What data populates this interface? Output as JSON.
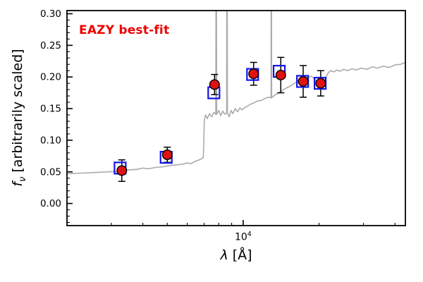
{
  "chart_data": {
    "type": "line",
    "annotation": "EAZY best-fit",
    "xlabel_parts": {
      "lambda": "λ",
      "rest": " [Å]"
    },
    "ylabel_parts": {
      "f": "f",
      "sub": "ν",
      "rest": " [arbitrarily scaled]"
    },
    "xscale": "log",
    "xlim": [
      2000,
      44000
    ],
    "ylim": [
      -0.035,
      0.305
    ],
    "grid": false,
    "legend": null,
    "xtick_major": [
      10000
    ],
    "xtick_major_label": {
      "base": "10",
      "exp": "4"
    },
    "xtick_minor": [
      3000,
      4000,
      5000,
      6000,
      7000,
      8000,
      9000,
      20000,
      30000,
      40000
    ],
    "ytick_values": [
      0,
      0.05,
      0.1,
      0.15,
      0.2,
      0.25,
      0.3
    ],
    "ytick_labels": [
      "0.00",
      "0.05",
      "0.10",
      "0.15",
      "0.20",
      "0.25",
      "0.30"
    ],
    "ytick_minor_step": 0.01,
    "colors": {
      "spectrum": "#ababab",
      "model_marker": "#1414e6",
      "observed_fill": "#e01212",
      "observed_edge": "#000000",
      "errorbar": "#000000",
      "annotation": "#ee0000",
      "axes": "#000000"
    },
    "series": [
      {
        "name": "best-fit template spectrum",
        "type": "line",
        "x": [
          2000,
          2300,
          2600,
          2900,
          3200,
          3500,
          3800,
          4000,
          4200,
          4500,
          4800,
          5100,
          5400,
          5700,
          6000,
          6200,
          6400,
          6600,
          6800,
          6950,
          7010,
          7100,
          7200,
          7350,
          7500,
          7650,
          7790,
          7820,
          7850,
          8000,
          8150,
          8300,
          8450,
          8600,
          8625,
          8660,
          8800,
          8950,
          9100,
          9300,
          9500,
          9700,
          9900,
          10100,
          10400,
          10700,
          11000,
          11400,
          11800,
          12200,
          12600,
          12900,
          12930,
          12970,
          13300,
          13700,
          14100,
          14600,
          15100,
          15600,
          16100,
          16600,
          17100,
          17600,
          18100,
          18600,
          19100,
          19600,
          20000,
          20400,
          20800,
          21300,
          21800,
          22300,
          22900,
          23500,
          24200,
          25000,
          26000,
          27000,
          28000,
          29500,
          31000,
          32500,
          34000,
          36000,
          38000,
          40000,
          42000,
          44000
        ],
        "y": [
          0.047,
          0.048,
          0.049,
          0.05,
          0.051,
          0.053,
          0.054,
          0.056,
          0.055,
          0.057,
          0.058,
          0.06,
          0.061,
          0.062,
          0.064,
          0.063,
          0.066,
          0.068,
          0.07,
          0.073,
          0.132,
          0.14,
          0.134,
          0.142,
          0.137,
          0.144,
          0.141,
          0.6,
          0.141,
          0.147,
          0.139,
          0.146,
          0.141,
          0.143,
          0.6,
          0.143,
          0.137,
          0.147,
          0.142,
          0.15,
          0.145,
          0.151,
          0.148,
          0.151,
          0.154,
          0.157,
          0.159,
          0.162,
          0.163,
          0.166,
          0.168,
          0.167,
          0.6,
          0.167,
          0.171,
          0.174,
          0.177,
          0.181,
          0.184,
          0.187,
          0.191,
          0.194,
          0.197,
          0.198,
          0.2,
          0.201,
          0.198,
          0.192,
          0.188,
          0.185,
          0.19,
          0.2,
          0.207,
          0.21,
          0.208,
          0.211,
          0.209,
          0.212,
          0.21,
          0.213,
          0.211,
          0.214,
          0.212,
          0.216,
          0.214,
          0.217,
          0.215,
          0.219,
          0.22,
          0.223
        ]
      },
      {
        "name": "model photometry (squares)",
        "type": "scatter-square",
        "points": [
          {
            "lambda": 3250,
            "flux": 0.056
          },
          {
            "lambda": 4950,
            "flux": 0.073
          },
          {
            "lambda": 7650,
            "flux": 0.175
          },
          {
            "lambda": 10900,
            "flux": 0.204
          },
          {
            "lambda": 13900,
            "flux": 0.209
          },
          {
            "lambda": 17200,
            "flux": 0.193
          },
          {
            "lambda": 20200,
            "flux": 0.19
          }
        ]
      },
      {
        "name": "observed photometry (circles with errors)",
        "type": "scatter-circle-errorbar",
        "points": [
          {
            "lambda": 3300,
            "flux": 0.052,
            "err": 0.017
          },
          {
            "lambda": 5000,
            "flux": 0.077,
            "err": 0.012
          },
          {
            "lambda": 7700,
            "flux": 0.188,
            "err": 0.016
          },
          {
            "lambda": 11000,
            "flux": 0.205,
            "err": 0.018
          },
          {
            "lambda": 14100,
            "flux": 0.203,
            "err": 0.028
          },
          {
            "lambda": 17300,
            "flux": 0.193,
            "err": 0.025
          },
          {
            "lambda": 20300,
            "flux": 0.19,
            "err": 0.02
          }
        ]
      }
    ]
  }
}
